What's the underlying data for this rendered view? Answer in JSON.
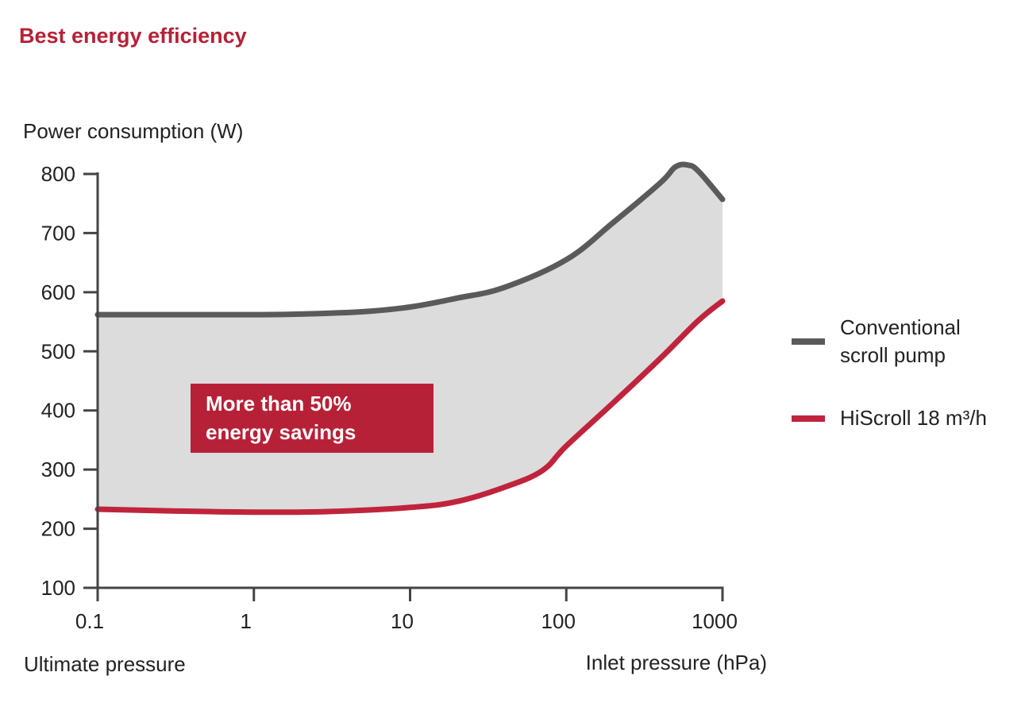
{
  "header": {
    "title": "Best energy efficiency"
  },
  "colors": {
    "accent": "#b72137",
    "conventional": "#5a5a5a",
    "hiscroll": "#c0243c",
    "fill": "#dcdcdc",
    "axis": "#444444"
  },
  "chart_data": {
    "type": "line",
    "title": "Best energy efficiency",
    "ylabel": "Power consumption (W)",
    "xlabel": "Inlet pressure (hPa)",
    "xlabel_left": "Ultimate pressure",
    "x_scale": "log",
    "xlim": [
      0.1,
      1000
    ],
    "ylim": [
      100,
      800
    ],
    "x_ticks": [
      0.1,
      1,
      10,
      100,
      1000
    ],
    "x_tick_labels": [
      "0.1",
      "1",
      "10",
      "100",
      "1000"
    ],
    "y_ticks": [
      100,
      200,
      300,
      400,
      500,
      600,
      700,
      800
    ],
    "y_tick_labels": [
      "100",
      "200",
      "300",
      "400",
      "500",
      "600",
      "700",
      "800"
    ],
    "series": [
      {
        "name": "Conventional scroll pump",
        "legend_lines": [
          "Conventional",
          "scroll pump"
        ],
        "x": [
          0.1,
          0.3,
          1,
          2,
          5,
          10,
          20,
          40,
          100,
          200,
          400,
          500,
          600,
          700,
          1000
        ],
        "values": [
          562,
          562,
          562,
          563,
          567,
          575,
          590,
          608,
          655,
          718,
          785,
          812,
          815,
          805,
          757
        ]
      },
      {
        "name": "HiScroll 18 m³/h",
        "legend_lines": [
          "HiScroll 18 m³/h"
        ],
        "x": [
          0.1,
          0.3,
          1,
          3,
          10,
          20,
          40,
          70,
          100,
          200,
          400,
          700,
          1000
        ],
        "values": [
          233,
          230,
          228,
          229,
          236,
          246,
          270,
          298,
          340,
          413,
          488,
          552,
          585
        ]
      }
    ],
    "annotations": [
      {
        "text_lines": [
          "More than 50%",
          "energy savings"
        ]
      }
    ]
  }
}
